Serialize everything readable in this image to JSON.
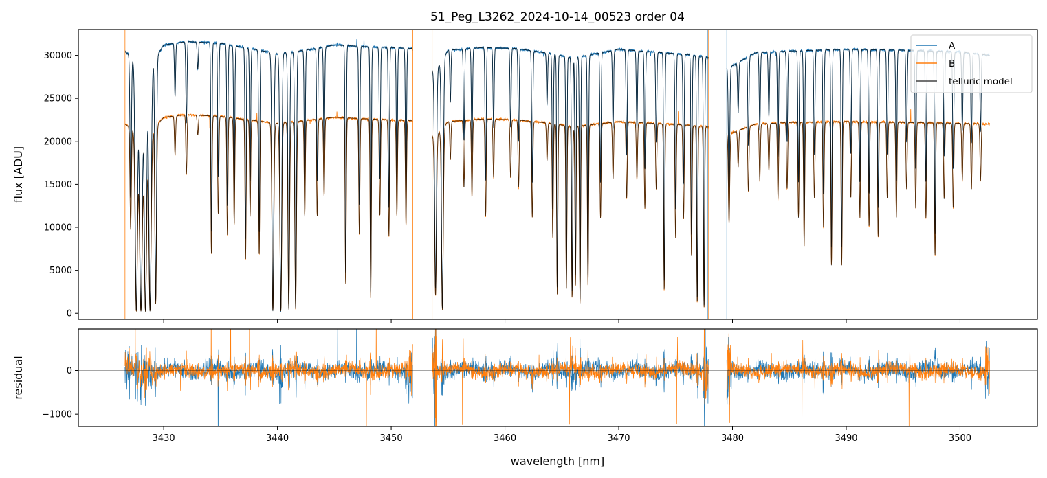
{
  "chart_data": [
    {
      "type": "line",
      "title": "51_Peg_L3262_2024-10-14_00523  order 04",
      "xlabel": "",
      "ylabel": "flux [ADU]",
      "xlim": [
        3422.5,
        3506.8
      ],
      "ylim": [
        -700,
        33000
      ],
      "y_ticks": [
        0,
        5000,
        10000,
        15000,
        20000,
        25000,
        30000
      ],
      "y_tick_labels": [
        "0",
        "5000",
        "10000",
        "15000",
        "20000",
        "25000",
        "30000"
      ],
      "x_ticks": [
        3430,
        3440,
        3450,
        3460,
        3470,
        3480,
        3490,
        3500
      ],
      "legend_position": "top-right",
      "continuum": {
        "x": [
          3426.6,
          3428.5,
          3430,
          3432,
          3435,
          3440,
          3443,
          3445,
          3448,
          3450,
          3451.8,
          3453.8,
          3455,
          3458,
          3461,
          3464,
          3466,
          3468,
          3470,
          3473,
          3476,
          3477.8,
          3479.6,
          3482,
          3485,
          3490,
          3495,
          3500,
          3502.6
        ],
        "A": [
          30500,
          28000,
          31200,
          31600,
          31400,
          30200,
          30700,
          31200,
          31000,
          30900,
          30800,
          28000,
          30600,
          30900,
          30800,
          30200,
          29700,
          30200,
          30700,
          30400,
          30100,
          29800,
          28500,
          30300,
          30500,
          30700,
          30600,
          30400,
          30000
        ],
        "B": [
          22000,
          20500,
          22800,
          23100,
          22900,
          22100,
          22500,
          22800,
          22600,
          22500,
          22400,
          20500,
          22300,
          22600,
          22500,
          22100,
          21700,
          22000,
          22300,
          22100,
          21900,
          21700,
          20800,
          22000,
          22200,
          22300,
          22200,
          22100,
          22000
        ]
      },
      "lines": [
        {
          "x": 3427.1,
          "d": 0.55,
          "w": 0.06
        },
        {
          "x": 3427.6,
          "d": 0.99,
          "w": 0.1
        },
        {
          "x": 3428.0,
          "d": 0.99,
          "w": 0.12
        },
        {
          "x": 3428.4,
          "d": 0.99,
          "w": 0.1
        },
        {
          "x": 3428.8,
          "d": 0.99,
          "w": 0.1
        },
        {
          "x": 3429.3,
          "d": 0.95,
          "w": 0.07
        },
        {
          "x": 3431.0,
          "d": 0.2,
          "w": 0.05
        },
        {
          "x": 3432.0,
          "d": 0.3,
          "w": 0.05
        },
        {
          "x": 3433.0,
          "d": 0.1,
          "w": 0.05
        },
        {
          "x": 3434.2,
          "d": 0.7,
          "w": 0.05
        },
        {
          "x": 3434.8,
          "d": 0.5,
          "w": 0.05
        },
        {
          "x": 3435.6,
          "d": 0.6,
          "w": 0.05
        },
        {
          "x": 3436.2,
          "d": 0.55,
          "w": 0.05
        },
        {
          "x": 3437.2,
          "d": 0.72,
          "w": 0.05
        },
        {
          "x": 3437.6,
          "d": 0.5,
          "w": 0.05
        },
        {
          "x": 3438.4,
          "d": 0.7,
          "w": 0.05
        },
        {
          "x": 3439.6,
          "d": 0.99,
          "w": 0.08
        },
        {
          "x": 3440.3,
          "d": 0.99,
          "w": 0.08
        },
        {
          "x": 3441.0,
          "d": 0.98,
          "w": 0.07
        },
        {
          "x": 3441.6,
          "d": 0.98,
          "w": 0.07
        },
        {
          "x": 3442.4,
          "d": 0.5,
          "w": 0.05
        },
        {
          "x": 3443.5,
          "d": 0.5,
          "w": 0.05
        },
        {
          "x": 3444.1,
          "d": 0.4,
          "w": 0.05
        },
        {
          "x": 3446.0,
          "d": 0.85,
          "w": 0.05
        },
        {
          "x": 3447.2,
          "d": 0.6,
          "w": 0.05
        },
        {
          "x": 3448.2,
          "d": 0.92,
          "w": 0.05
        },
        {
          "x": 3449.0,
          "d": 0.5,
          "w": 0.05
        },
        {
          "x": 3449.8,
          "d": 0.6,
          "w": 0.05
        },
        {
          "x": 3450.5,
          "d": 0.5,
          "w": 0.05
        },
        {
          "x": 3451.3,
          "d": 0.55,
          "w": 0.05
        },
        {
          "x": 3453.9,
          "d": 0.9,
          "w": 0.08
        },
        {
          "x": 3454.5,
          "d": 0.98,
          "w": 0.08
        },
        {
          "x": 3455.2,
          "d": 0.2,
          "w": 0.05
        },
        {
          "x": 3456.4,
          "d": 0.35,
          "w": 0.05
        },
        {
          "x": 3457.1,
          "d": 0.4,
          "w": 0.05
        },
        {
          "x": 3458.3,
          "d": 0.5,
          "w": 0.05
        },
        {
          "x": 3459.0,
          "d": 0.3,
          "w": 0.05
        },
        {
          "x": 3460.5,
          "d": 0.3,
          "w": 0.05
        },
        {
          "x": 3461.2,
          "d": 0.35,
          "w": 0.05
        },
        {
          "x": 3462.4,
          "d": 0.5,
          "w": 0.05
        },
        {
          "x": 3463.7,
          "d": 0.2,
          "w": 0.05
        },
        {
          "x": 3464.2,
          "d": 0.6,
          "w": 0.05
        },
        {
          "x": 3464.6,
          "d": 0.9,
          "w": 0.05
        },
        {
          "x": 3465.4,
          "d": 0.88,
          "w": 0.05
        },
        {
          "x": 3465.9,
          "d": 0.92,
          "w": 0.05
        },
        {
          "x": 3466.2,
          "d": 0.85,
          "w": 0.05
        },
        {
          "x": 3466.6,
          "d": 0.95,
          "w": 0.05
        },
        {
          "x": 3467.3,
          "d": 0.85,
          "w": 0.05
        },
        {
          "x": 3468.4,
          "d": 0.5,
          "w": 0.05
        },
        {
          "x": 3469.5,
          "d": 0.3,
          "w": 0.05
        },
        {
          "x": 3470.7,
          "d": 0.4,
          "w": 0.05
        },
        {
          "x": 3471.6,
          "d": 0.3,
          "w": 0.05
        },
        {
          "x": 3472.3,
          "d": 0.45,
          "w": 0.05
        },
        {
          "x": 3473.3,
          "d": 0.35,
          "w": 0.05
        },
        {
          "x": 3474.0,
          "d": 0.88,
          "w": 0.05
        },
        {
          "x": 3475.0,
          "d": 0.6,
          "w": 0.05
        },
        {
          "x": 3475.7,
          "d": 0.5,
          "w": 0.05
        },
        {
          "x": 3476.4,
          "d": 0.7,
          "w": 0.05
        },
        {
          "x": 3476.9,
          "d": 0.95,
          "w": 0.05
        },
        {
          "x": 3477.5,
          "d": 0.97,
          "w": 0.05
        },
        {
          "x": 3479.7,
          "d": 0.5,
          "w": 0.06
        },
        {
          "x": 3480.5,
          "d": 0.2,
          "w": 0.05
        },
        {
          "x": 3481.4,
          "d": 0.35,
          "w": 0.05
        },
        {
          "x": 3482.4,
          "d": 0.3,
          "w": 0.05
        },
        {
          "x": 3483.2,
          "d": 0.25,
          "w": 0.05
        },
        {
          "x": 3484.0,
          "d": 0.4,
          "w": 0.05
        },
        {
          "x": 3484.8,
          "d": 0.35,
          "w": 0.05
        },
        {
          "x": 3485.8,
          "d": 0.5,
          "w": 0.05
        },
        {
          "x": 3486.3,
          "d": 0.65,
          "w": 0.05
        },
        {
          "x": 3487.2,
          "d": 0.4,
          "w": 0.05
        },
        {
          "x": 3488.0,
          "d": 0.55,
          "w": 0.05
        },
        {
          "x": 3488.7,
          "d": 0.75,
          "w": 0.05
        },
        {
          "x": 3489.6,
          "d": 0.75,
          "w": 0.05
        },
        {
          "x": 3490.4,
          "d": 0.4,
          "w": 0.05
        },
        {
          "x": 3491.2,
          "d": 0.5,
          "w": 0.05
        },
        {
          "x": 3492.0,
          "d": 0.55,
          "w": 0.05
        },
        {
          "x": 3492.8,
          "d": 0.6,
          "w": 0.05
        },
        {
          "x": 3493.6,
          "d": 0.4,
          "w": 0.05
        },
        {
          "x": 3494.4,
          "d": 0.5,
          "w": 0.05
        },
        {
          "x": 3495.3,
          "d": 0.35,
          "w": 0.05
        },
        {
          "x": 3496.1,
          "d": 0.45,
          "w": 0.05
        },
        {
          "x": 3497.0,
          "d": 0.5,
          "w": 0.05
        },
        {
          "x": 3497.8,
          "d": 0.7,
          "w": 0.05
        },
        {
          "x": 3498.6,
          "d": 0.4,
          "w": 0.05
        },
        {
          "x": 3499.4,
          "d": 0.45,
          "w": 0.05
        },
        {
          "x": 3500.2,
          "d": 0.3,
          "w": 0.05
        },
        {
          "x": 3501.0,
          "d": 0.35,
          "w": 0.05
        },
        {
          "x": 3501.8,
          "d": 0.3,
          "w": 0.05
        }
      ],
      "segments": [
        [
          3426.6,
          3451.9
        ],
        [
          3453.6,
          3477.9
        ],
        [
          3479.5,
          3502.6
        ]
      ],
      "series": [
        {
          "name": "A",
          "color": "#1f77b4"
        },
        {
          "name": "B",
          "color": "#ff7f0e"
        },
        {
          "name": "telluric model",
          "color": "#444444"
        }
      ]
    },
    {
      "type": "line",
      "title": "",
      "xlabel": "wavelength [nm]",
      "ylabel": "residual",
      "xlim": [
        3422.5,
        3506.8
      ],
      "ylim": [
        -1280,
        950
      ],
      "y_ticks": [
        -1000,
        0
      ],
      "y_tick_labels": [
        "−1000",
        "0"
      ],
      "x_ticks": [
        3430,
        3440,
        3450,
        3460,
        3470,
        3480,
        3490,
        3500
      ],
      "x_tick_labels": [
        "3430",
        "3440",
        "3450",
        "3460",
        "3470",
        "3480",
        "3490",
        "3500"
      ],
      "zero_line": 0,
      "series": [
        {
          "name": "A",
          "color": "#1f77b4"
        },
        {
          "name": "B",
          "color": "#ff7f0e"
        }
      ]
    }
  ]
}
